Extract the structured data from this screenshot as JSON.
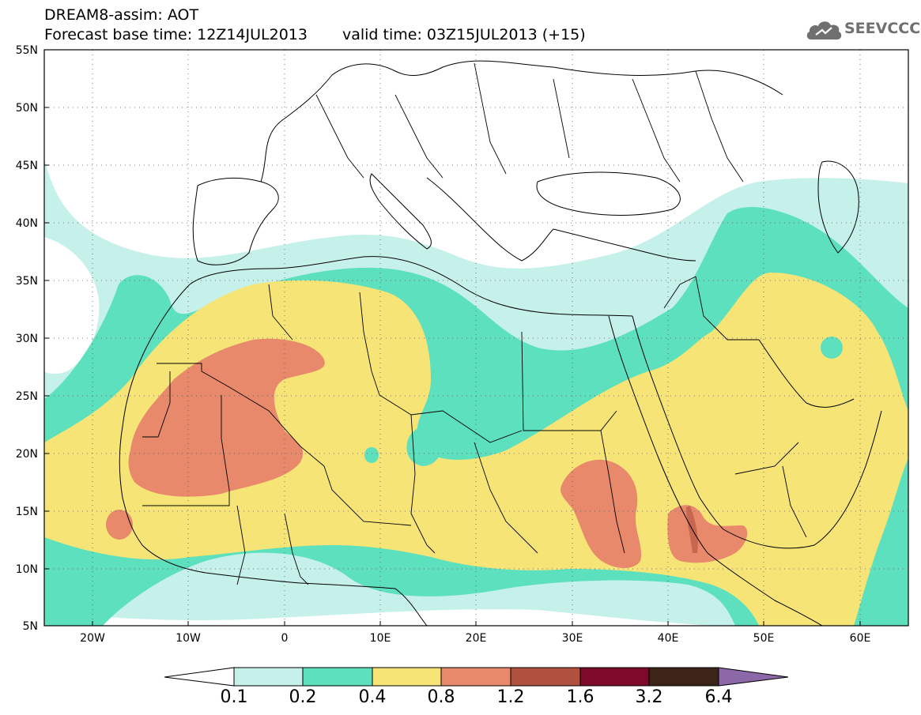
{
  "header": {
    "title": "DREAM8-assim: AOT",
    "base_time_label": "Forecast base time: 12Z14JUL2013",
    "valid_time_label": "valid time: 03Z15JUL2013 (+15)"
  },
  "logo": {
    "text": "SEEVCCC",
    "icon": "cloud-icon"
  },
  "map": {
    "lat_labels": [
      "55N",
      "50N",
      "45N",
      "40N",
      "35N",
      "30N",
      "25N",
      "20N",
      "15N",
      "10N",
      "5N"
    ],
    "lon_labels": [
      "20W",
      "10W",
      "0",
      "10E",
      "20E",
      "30E",
      "40E",
      "50E",
      "60E"
    ],
    "lat_range": [
      5,
      55
    ],
    "lon_range": [
      -25,
      65
    ],
    "grid": "dotted"
  },
  "colorbar": {
    "levels": [
      "0.1",
      "0.2",
      "0.4",
      "0.8",
      "1.2",
      "1.6",
      "3.2",
      "6.4"
    ],
    "colors": {
      "below": "#ffffff",
      "c1": "#c6f0ea",
      "c2": "#5de0bd",
      "c3": "#f6e477",
      "c4": "#e8896c",
      "c5": "#b0503e",
      "c6": "#7d0a2a",
      "c7": "#3c2418",
      "above": "#8c68a8"
    }
  }
}
